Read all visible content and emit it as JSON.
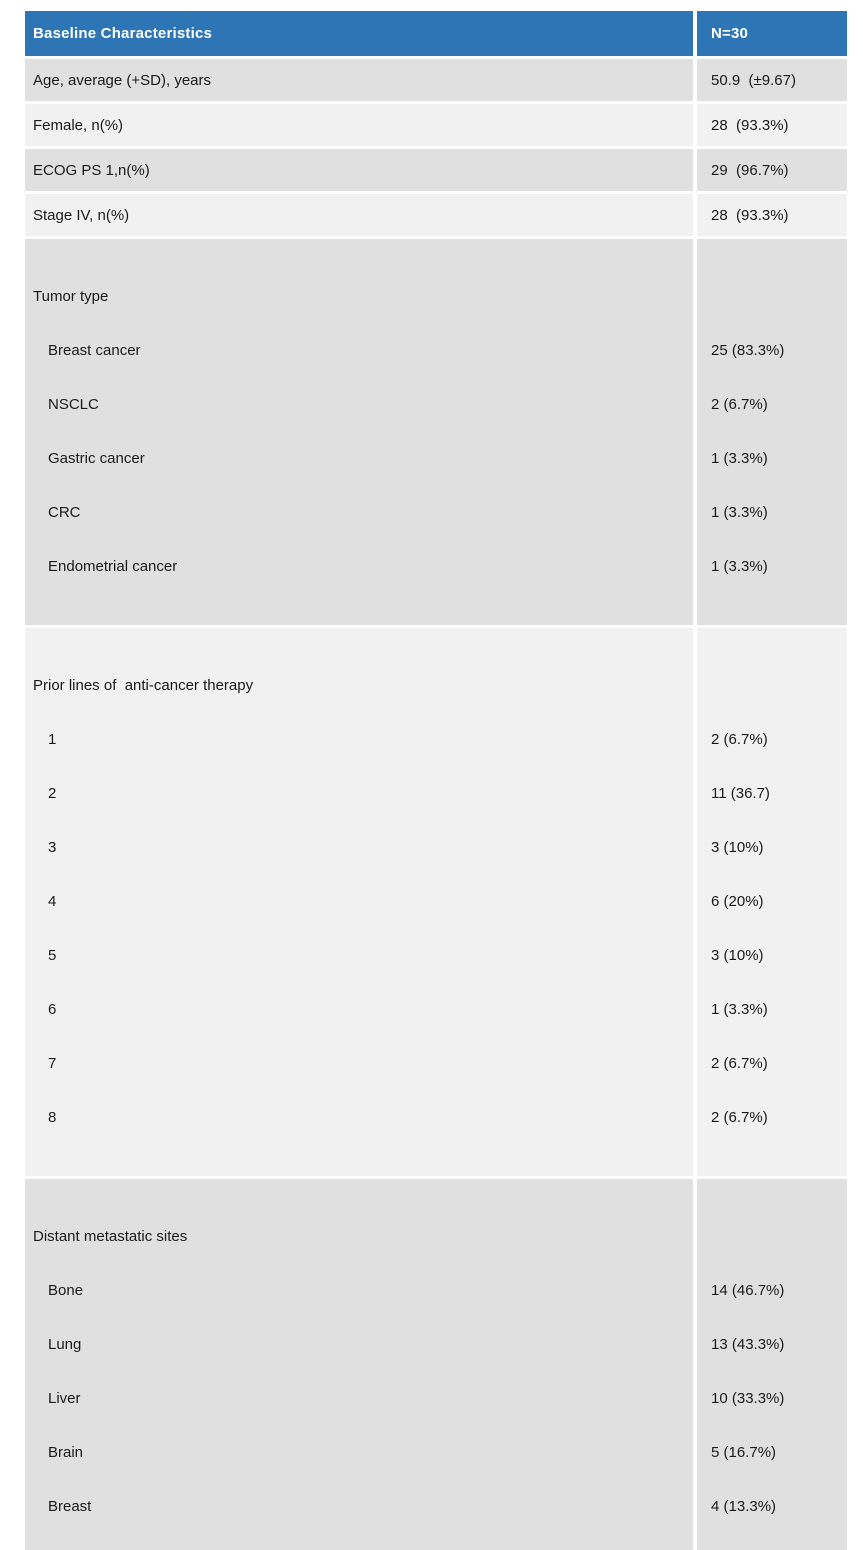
{
  "colors": {
    "header_bg": "#2e75b5",
    "header_text": "#ffffff",
    "row_dark": "#e0e0e0",
    "row_light": "#f1f1f1",
    "body_text": "#1a1a1a",
    "page_bg": "#ffffff"
  },
  "table": {
    "header": {
      "label": "Baseline Characteristics",
      "value": "N=30"
    },
    "simple_rows": [
      {
        "label": "Age, average (+SD), years",
        "value": "50.9  (±9.67)"
      },
      {
        "label": "Female, n(%)",
        "value": "28  (93.3%)"
      },
      {
        "label": "ECOG PS 1,n(%)",
        "value": "29  (96.7%)"
      },
      {
        "label": "Stage IV, n(%)",
        "value": "28  (93.3%)"
      }
    ],
    "group_rows": [
      {
        "label": "Tumor type",
        "items": [
          {
            "label": "Breast cancer",
            "value": "25 (83.3%)"
          },
          {
            "label": "NSCLC",
            "value": "2 (6.7%)"
          },
          {
            "label": "Gastric cancer",
            "value": "1 (3.3%)"
          },
          {
            "label": "CRC",
            "value": "1 (3.3%)"
          },
          {
            "label": "Endometrial cancer",
            "value": "1 (3.3%)"
          }
        ]
      },
      {
        "label": "Prior lines of  anti-cancer therapy",
        "items": [
          {
            "label": "1",
            "value": "2 (6.7%)"
          },
          {
            "label": "2",
            "value": "11 (36.7)"
          },
          {
            "label": "3",
            "value": "3 (10%)"
          },
          {
            "label": "4",
            "value": "6 (20%)"
          },
          {
            "label": "5",
            "value": "3 (10%)"
          },
          {
            "label": "6",
            "value": "1 (3.3%)"
          },
          {
            "label": "7",
            "value": "2 (6.7%)"
          },
          {
            "label": "8",
            "value": "2 (6.7%)"
          }
        ]
      },
      {
        "label": "Distant metastatic sites",
        "items": [
          {
            "label": "Bone",
            "value": "14 (46.7%)"
          },
          {
            "label": "Lung",
            "value": "13 (43.3%)"
          },
          {
            "label": "Liver",
            "value": "10 (33.3%)"
          },
          {
            "label": "Brain",
            "value": "5 (16.7%)"
          },
          {
            "label": "Breast",
            "value": "4 (13.3%)"
          }
        ]
      }
    ]
  }
}
